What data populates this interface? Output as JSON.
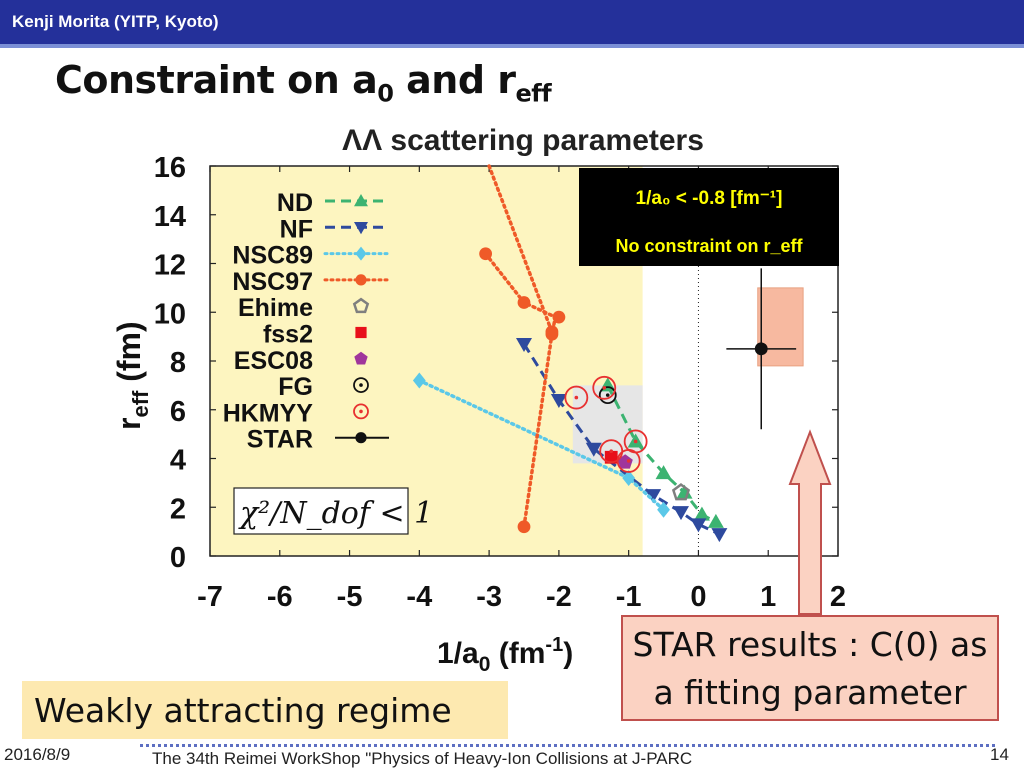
{
  "header": {
    "author": "Kenji Morita (YITP, Kyoto)"
  },
  "slide": {
    "title_main": "Constraint on a",
    "title_sub0": "0",
    "title_and": " and r",
    "title_subeff": "eff"
  },
  "chart_data": {
    "type": "scatter",
    "title": "ΛΛ scattering parameters",
    "xlabel": "1/a",
    "xlabel_sub": "0",
    "xlabel_unit": " (fm",
    "xlabel_sup": "-1",
    "xlabel_close": ")",
    "ylabel": "r",
    "ylabel_sub": "eff",
    "ylabel_unit": " (fm)",
    "xlim": [
      -7,
      2
    ],
    "ylim": [
      0,
      16
    ],
    "xticks": [
      -7,
      -6,
      -5,
      -4,
      -3,
      -2,
      -1,
      0,
      1,
      2
    ],
    "yticks": [
      0,
      2,
      4,
      6,
      8,
      10,
      12,
      14,
      16
    ],
    "legend_position": "left",
    "shaded_region_x": [
      -7,
      -0.8
    ],
    "chi2_box": "χ²/N_dof < 1",
    "constraint_label_1": "1/a₀ < -0.8 [fm⁻¹]",
    "constraint_label_2": "No constraint on r_eff",
    "series": [
      {
        "name": "ND",
        "color": "#3cb371",
        "style": "dash",
        "marker": "triangle-up",
        "points": [
          [
            -1.3,
            7.0
          ],
          [
            -0.9,
            4.7
          ],
          [
            -0.5,
            3.4
          ],
          [
            -0.2,
            2.6
          ],
          [
            0.05,
            1.7
          ],
          [
            0.25,
            1.4
          ]
        ]
      },
      {
        "name": "NF",
        "color": "#2e4a9e",
        "style": "dash",
        "marker": "triangle-down",
        "points": [
          [
            -2.5,
            8.7
          ],
          [
            -2.0,
            6.4
          ],
          [
            -1.5,
            4.4
          ],
          [
            -0.65,
            2.5
          ],
          [
            -0.25,
            1.8
          ],
          [
            0.0,
            1.3
          ],
          [
            0.3,
            0.9
          ]
        ]
      },
      {
        "name": "NSC89",
        "color": "#5bc8e8",
        "style": "dot",
        "marker": "diamond",
        "points": [
          [
            -4.0,
            7.2
          ],
          [
            -1.0,
            3.2
          ],
          [
            -0.5,
            1.9
          ]
        ]
      },
      {
        "name": "NSC97",
        "color": "#ef5a28",
        "style": "dot",
        "marker": "circle",
        "points": [
          [
            -3.0,
            16.0
          ],
          [
            -2.1,
            9.2
          ],
          [
            -2.0,
            9.8
          ],
          [
            -2.5,
            10.4
          ],
          [
            -3.05,
            12.4
          ],
          [
            -2.1,
            9.1
          ],
          [
            -2.5,
            1.2
          ]
        ],
        "line": [
          [
            -3.0,
            16.0
          ],
          [
            -2.1,
            9.2
          ]
        ],
        "line2": [
          [
            -3.05,
            12.4
          ],
          [
            -2.5,
            10.4
          ],
          [
            -2.05,
            9.8
          ],
          [
            -2.1,
            9.1
          ],
          [
            -2.5,
            1.2
          ]
        ]
      },
      {
        "name": "Ehime",
        "color": "#7f7f7f",
        "marker": "pentagon-open",
        "points": [
          [
            -0.25,
            2.6
          ]
        ]
      },
      {
        "name": "fss2",
        "color": "#e8101a",
        "marker": "square",
        "points": [
          [
            -1.25,
            4.05
          ]
        ]
      },
      {
        "name": "ESC08",
        "color": "#a0359c",
        "marker": "pentagon",
        "points": [
          [
            -1.05,
            3.85
          ]
        ]
      },
      {
        "name": "FG",
        "color": "#111111",
        "marker": "circle-dot",
        "points": [
          [
            -1.3,
            6.6
          ]
        ]
      },
      {
        "name": "HKMYY",
        "color": "#e83030",
        "marker": "circle-dot",
        "points": [
          [
            -1.75,
            6.5
          ],
          [
            -1.35,
            6.9
          ],
          [
            -0.9,
            4.7
          ],
          [
            -1.25,
            4.3
          ],
          [
            -1.0,
            3.9
          ]
        ]
      },
      {
        "name": "STAR",
        "color": "#111111",
        "marker": "circle",
        "points": [
          [
            0.9,
            8.5
          ]
        ],
        "xerr": [
          0.5,
          0.5
        ],
        "yerr": [
          3.3,
          3.3
        ]
      }
    ],
    "star_band": {
      "x": [
        0.85,
        1.5
      ],
      "y": [
        7.8,
        11.0
      ]
    }
  },
  "callouts": {
    "weak": "Weakly attracting regime",
    "star_line1": "STAR results : C(0) as",
    "star_line2": "a fitting parameter"
  },
  "footer": {
    "date": "2016/8/9",
    "event": "The 34th Reimei WorkShop \"Physics of Heavy-Ion Collisions at J-PARC",
    "page": "14"
  },
  "colors": {
    "header": "#24309a",
    "yellow": "#fdf5c0",
    "callout_fill": "#fbd2c2",
    "callout_border": "#c0504d"
  }
}
